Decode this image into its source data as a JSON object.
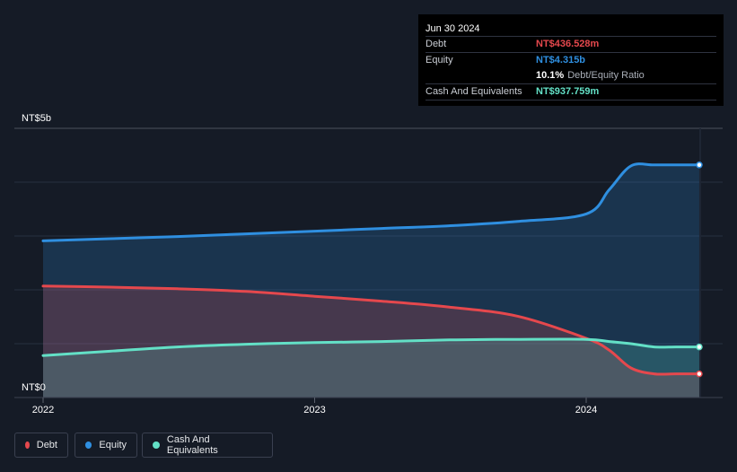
{
  "chart_data": {
    "type": "area",
    "ylim": [
      0,
      5
    ],
    "y_ticks": [
      "NT$5b",
      "NT$0"
    ],
    "x_ticks": [
      "2022",
      "2023",
      "2024"
    ],
    "x": [
      "2022-01",
      "2022-04",
      "2022-07",
      "2022-10",
      "2023-01",
      "2023-04",
      "2023-07",
      "2023-10",
      "2024-01",
      "2024-02",
      "2024-03",
      "2024-04",
      "2024-05",
      "2024-06"
    ],
    "series": [
      {
        "name": "Debt",
        "color": "#e5484d",
        "values": [
          2.07,
          2.05,
          2.02,
          1.97,
          1.88,
          1.79,
          1.68,
          1.51,
          1.1,
          0.88,
          0.55,
          0.44,
          0.44,
          0.44
        ]
      },
      {
        "name": "Equity",
        "color": "#2f8fe0",
        "values": [
          2.91,
          2.95,
          2.99,
          3.04,
          3.09,
          3.14,
          3.19,
          3.27,
          3.41,
          3.86,
          4.3,
          4.32,
          4.32,
          4.32
        ]
      },
      {
        "name": "Cash And Equivalents",
        "color": "#63e0c6",
        "values": [
          0.78,
          0.86,
          0.94,
          0.99,
          1.02,
          1.04,
          1.07,
          1.08,
          1.08,
          1.04,
          1.0,
          0.94,
          0.94,
          0.94
        ]
      }
    ],
    "legend_position": "bottom-left",
    "grid": true
  },
  "tooltip": {
    "date": "Jun 30 2024",
    "rows": [
      {
        "label": "Debt",
        "value": "NT$436.528m",
        "color": "#e5484d"
      },
      {
        "label": "Equity",
        "value": "NT$4.315b",
        "color": "#2f8fe0"
      },
      {
        "label": "",
        "value": "10.1%",
        "suffix": "Debt/Equity Ratio",
        "color": "#ffffff"
      },
      {
        "label": "Cash And Equivalents",
        "value": "NT$937.759m",
        "color": "#63e0c6"
      }
    ]
  },
  "legend": [
    {
      "label": "Debt",
      "color": "#e5484d"
    },
    {
      "label": "Equity",
      "color": "#2f8fe0"
    },
    {
      "label": "Cash And Equivalents",
      "color": "#63e0c6"
    }
  ]
}
